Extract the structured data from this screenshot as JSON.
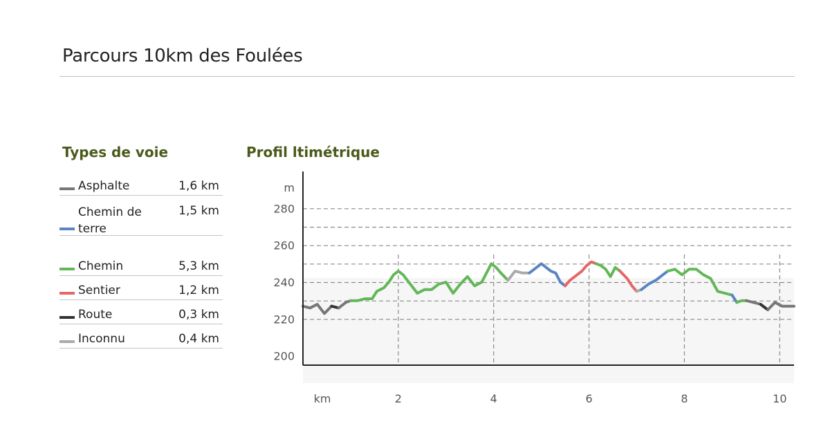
{
  "page": {
    "title": "Parcours 10km des Foulées"
  },
  "legend": {
    "heading": "Types de voie",
    "items": [
      {
        "label": "Asphalte",
        "value": "1,6 km",
        "color": "#777777"
      },
      {
        "label": "Chemin de terre",
        "value": "1,5 km",
        "color": "#5a85c2"
      },
      {
        "label": "Chemin",
        "value": "5,3 km",
        "color": "#62b757"
      },
      {
        "label": "Sentier",
        "value": "1,2 km",
        "color": "#e56767"
      },
      {
        "label": "Route",
        "value": "0,3 km",
        "color": "#333333"
      },
      {
        "label": "Inconnu",
        "value": "0,4 km",
        "color": "#aaaaaa"
      }
    ]
  },
  "chart": {
    "heading": "Profil ltimétrique"
  },
  "chart_data": {
    "type": "line",
    "title": "Profil ltimétrique",
    "xlabel": "km",
    "ylabel": "m",
    "xlim": [
      0,
      10.3
    ],
    "ylim": [
      195,
      300
    ],
    "x_ticks": [
      2,
      4,
      6,
      8,
      10
    ],
    "y_ticks": [
      200,
      220,
      240,
      260,
      280
    ],
    "grid": true,
    "series_colors": {
      "Asphalte": "#777777",
      "Chemin de terre": "#5a85c2",
      "Chemin": "#62b757",
      "Sentier": "#e56767",
      "Route": "#333333",
      "Inconnu": "#aaaaaa"
    },
    "segments": [
      {
        "type": "Asphalte",
        "points": [
          [
            0,
            227
          ],
          [
            0.15,
            226
          ],
          [
            0.3,
            228
          ],
          [
            0.45,
            223
          ],
          [
            0.6,
            227
          ]
        ]
      },
      {
        "type": "Route",
        "points": [
          [
            0.6,
            227
          ],
          [
            0.75,
            226
          ]
        ]
      },
      {
        "type": "Asphalte",
        "points": [
          [
            0.75,
            226
          ],
          [
            0.9,
            229
          ],
          [
            1.0,
            230
          ]
        ]
      },
      {
        "type": "Chemin",
        "points": [
          [
            1.0,
            230
          ],
          [
            1.15,
            230
          ],
          [
            1.3,
            231
          ],
          [
            1.45,
            231
          ],
          [
            1.55,
            235
          ],
          [
            1.7,
            237
          ],
          [
            1.8,
            240
          ],
          [
            1.9,
            244
          ],
          [
            2.0,
            246
          ],
          [
            2.1,
            244
          ],
          [
            2.25,
            239
          ],
          [
            2.4,
            234
          ],
          [
            2.55,
            236
          ],
          [
            2.7,
            236
          ],
          [
            2.85,
            239
          ],
          [
            3.0,
            240
          ],
          [
            3.15,
            234
          ],
          [
            3.3,
            239
          ],
          [
            3.45,
            243
          ],
          [
            3.6,
            238
          ],
          [
            3.75,
            240
          ],
          [
            3.85,
            245
          ],
          [
            3.95,
            250
          ],
          [
            4.05,
            248
          ],
          [
            4.15,
            245
          ],
          [
            4.3,
            241
          ]
        ]
      },
      {
        "type": "Inconnu",
        "points": [
          [
            4.3,
            241
          ],
          [
            4.45,
            246
          ],
          [
            4.6,
            245
          ],
          [
            4.75,
            245
          ]
        ]
      },
      {
        "type": "Chemin de terre",
        "points": [
          [
            4.75,
            245
          ],
          [
            4.9,
            248
          ],
          [
            5.0,
            250
          ],
          [
            5.1,
            248
          ],
          [
            5.2,
            246
          ],
          [
            5.3,
            245
          ],
          [
            5.4,
            240
          ],
          [
            5.5,
            238
          ]
        ]
      },
      {
        "type": "Sentier",
        "points": [
          [
            5.5,
            238
          ],
          [
            5.6,
            241
          ],
          [
            5.75,
            244
          ],
          [
            5.85,
            246
          ],
          [
            5.95,
            249
          ],
          [
            6.05,
            251
          ],
          [
            6.15,
            250
          ]
        ]
      },
      {
        "type": "Chemin",
        "points": [
          [
            6.15,
            250
          ],
          [
            6.25,
            249
          ],
          [
            6.35,
            247
          ],
          [
            6.45,
            243
          ],
          [
            6.55,
            248
          ],
          [
            6.65,
            246
          ]
        ]
      },
      {
        "type": "Sentier",
        "points": [
          [
            6.65,
            246
          ],
          [
            6.8,
            242
          ],
          [
            6.9,
            238
          ],
          [
            7.0,
            235
          ]
        ]
      },
      {
        "type": "Inconnu",
        "points": [
          [
            7.0,
            235
          ],
          [
            7.1,
            236
          ]
        ]
      },
      {
        "type": "Chemin de terre",
        "points": [
          [
            7.1,
            236
          ],
          [
            7.25,
            239
          ],
          [
            7.4,
            241
          ],
          [
            7.55,
            244
          ],
          [
            7.65,
            246
          ]
        ]
      },
      {
        "type": "Chemin",
        "points": [
          [
            7.65,
            246
          ],
          [
            7.8,
            247
          ],
          [
            7.95,
            244
          ],
          [
            8.1,
            247
          ],
          [
            8.25,
            247
          ],
          [
            8.4,
            244
          ],
          [
            8.55,
            242
          ],
          [
            8.7,
            235
          ],
          [
            8.85,
            234
          ],
          [
            9.0,
            233
          ]
        ]
      },
      {
        "type": "Chemin de terre",
        "points": [
          [
            9.0,
            233
          ],
          [
            9.1,
            229
          ]
        ]
      },
      {
        "type": "Chemin",
        "points": [
          [
            9.1,
            229
          ],
          [
            9.2,
            230
          ],
          [
            9.3,
            230
          ]
        ]
      },
      {
        "type": "Asphalte",
        "points": [
          [
            9.3,
            230
          ],
          [
            9.45,
            229
          ],
          [
            9.6,
            228
          ]
        ]
      },
      {
        "type": "Route",
        "points": [
          [
            9.6,
            228
          ],
          [
            9.75,
            225
          ]
        ]
      },
      {
        "type": "Asphalte",
        "points": [
          [
            9.75,
            225
          ],
          [
            9.9,
            229
          ],
          [
            10.05,
            227
          ],
          [
            10.3,
            227
          ]
        ]
      }
    ]
  }
}
